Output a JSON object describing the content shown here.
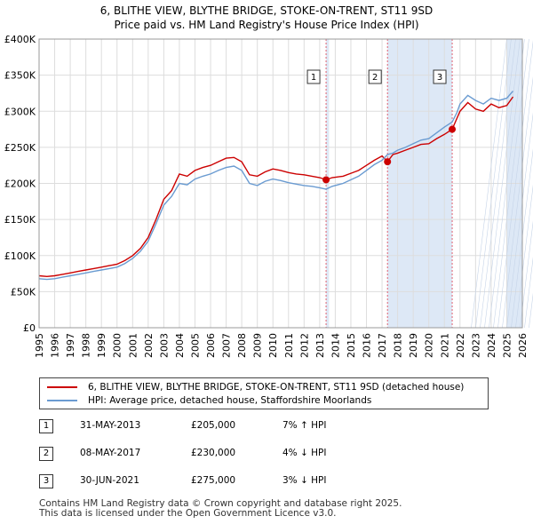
{
  "title_line1": "6, BLITHE VIEW, BLYTHE BRIDGE, STOKE-ON-TRENT, ST11 9SD",
  "title_line2": "Price paid vs. HM Land Registry's House Price Index (HPI)",
  "chart_data": {
    "type": "line",
    "title": "6, BLITHE VIEW, BLYTHE BRIDGE, STOKE-ON-TRENT, ST11 9SD — Price paid vs. HM Land Registry's House Price Index (HPI)",
    "xlabel": "",
    "ylabel": "",
    "xlim": [
      1995,
      2026
    ],
    "ylim": [
      0,
      400000
    ],
    "x_ticks": [
      "1995",
      "1996",
      "1997",
      "1998",
      "1999",
      "2000",
      "2001",
      "2002",
      "2003",
      "2004",
      "2005",
      "2006",
      "2007",
      "2008",
      "2009",
      "2010",
      "2011",
      "2012",
      "2013",
      "2014",
      "2015",
      "2016",
      "2017",
      "2018",
      "2019",
      "2020",
      "2021",
      "2022",
      "2023",
      "2024",
      "2025",
      "2026"
    ],
    "y_ticks": [
      {
        "value": 0,
        "label": "£0"
      },
      {
        "value": 50000,
        "label": "£50K"
      },
      {
        "value": 100000,
        "label": "£100K"
      },
      {
        "value": 150000,
        "label": "£150K"
      },
      {
        "value": 200000,
        "label": "£200K"
      },
      {
        "value": 250000,
        "label": "£250K"
      },
      {
        "value": 300000,
        "label": "£300K"
      },
      {
        "value": 350000,
        "label": "£350K"
      },
      {
        "value": 400000,
        "label": "£400K"
      }
    ],
    "grid": true,
    "shaded_ranges": [
      [
        2013.41,
        2013.6
      ],
      [
        2017.35,
        2021.5
      ],
      [
        2025.0,
        2026.0
      ]
    ],
    "series": [
      {
        "name": "6, BLITHE VIEW, BLYTHE BRIDGE, STOKE-ON-TRENT, ST11 9SD (detached house)",
        "color": "#cc0000",
        "x": [
          1995.0,
          1995.5,
          1996.0,
          1996.5,
          1997.0,
          1997.5,
          1998.0,
          1998.5,
          1999.0,
          1999.5,
          2000.0,
          2000.5,
          2001.0,
          2001.5,
          2002.0,
          2002.5,
          2003.0,
          2003.5,
          2004.0,
          2004.5,
          2005.0,
          2005.5,
          2006.0,
          2006.5,
          2007.0,
          2007.5,
          2008.0,
          2008.5,
          2009.0,
          2009.5,
          2010.0,
          2010.5,
          2011.0,
          2011.5,
          2012.0,
          2012.5,
          2013.0,
          2013.41,
          2013.8,
          2014.5,
          2015.0,
          2015.5,
          2016.0,
          2016.5,
          2017.0,
          2017.35,
          2017.7,
          2018.0,
          2018.5,
          2019.0,
          2019.5,
          2020.0,
          2020.5,
          2021.0,
          2021.5,
          2021.8,
          2022.0,
          2022.5,
          2023.0,
          2023.5,
          2024.0,
          2024.5,
          2025.0,
          2025.4
        ],
        "values": [
          72000,
          71000,
          72000,
          74000,
          76000,
          78000,
          80000,
          82000,
          84000,
          86000,
          88000,
          93000,
          100000,
          110000,
          125000,
          150000,
          178000,
          190000,
          213000,
          210000,
          218000,
          222000,
          225000,
          230000,
          235000,
          236000,
          230000,
          212000,
          210000,
          216000,
          220000,
          218000,
          215000,
          213000,
          212000,
          210000,
          208000,
          205000,
          208000,
          210000,
          214000,
          218000,
          225000,
          232000,
          238000,
          230000,
          240000,
          242000,
          246000,
          250000,
          254000,
          255000,
          262000,
          268000,
          275000,
          290000,
          300000,
          312000,
          303000,
          300000,
          310000,
          305000,
          308000,
          320000
        ]
      },
      {
        "name": "HPI: Average price, detached house, Staffordshire Moorlands",
        "color": "#6a9bd1",
        "x": [
          1995.0,
          1995.5,
          1996.0,
          1996.5,
          1997.0,
          1997.5,
          1998.0,
          1998.5,
          1999.0,
          1999.5,
          2000.0,
          2000.5,
          2001.0,
          2001.5,
          2002.0,
          2002.5,
          2003.0,
          2003.5,
          2004.0,
          2004.5,
          2005.0,
          2005.5,
          2006.0,
          2006.5,
          2007.0,
          2007.5,
          2008.0,
          2008.5,
          2009.0,
          2009.5,
          2010.0,
          2010.5,
          2011.0,
          2011.5,
          2012.0,
          2012.5,
          2013.0,
          2013.41,
          2013.8,
          2014.5,
          2015.0,
          2015.5,
          2016.0,
          2016.5,
          2017.0,
          2017.35,
          2017.7,
          2018.0,
          2018.5,
          2019.0,
          2019.5,
          2020.0,
          2020.5,
          2021.0,
          2021.5,
          2021.8,
          2022.0,
          2022.5,
          2023.0,
          2023.5,
          2024.0,
          2024.5,
          2025.0,
          2025.4
        ],
        "values": [
          68000,
          67000,
          68000,
          70000,
          72000,
          74000,
          76000,
          78000,
          80000,
          82000,
          84000,
          89000,
          96000,
          106000,
          120000,
          144000,
          170000,
          182000,
          200000,
          198000,
          206000,
          210000,
          213000,
          218000,
          222000,
          224000,
          218000,
          200000,
          197000,
          203000,
          206000,
          204000,
          201000,
          199000,
          197000,
          196000,
          194000,
          192000,
          196000,
          200000,
          205000,
          210000,
          218000,
          226000,
          232000,
          240000,
          242000,
          246000,
          250000,
          255000,
          260000,
          262000,
          270000,
          278000,
          285000,
          298000,
          310000,
          322000,
          315000,
          310000,
          318000,
          315000,
          318000,
          328000
        ]
      }
    ],
    "sale_markers": [
      {
        "label": "1",
        "x": 2013.41,
        "value": 205000
      },
      {
        "label": "2",
        "x": 2017.35,
        "value": 230000
      },
      {
        "label": "3",
        "x": 2021.5,
        "value": 275000
      }
    ]
  },
  "legend": {
    "property": "6, BLITHE VIEW, BLYTHE BRIDGE, STOKE-ON-TRENT, ST11 9SD (detached house)",
    "hpi": "HPI: Average price, detached house, Staffordshire Moorlands"
  },
  "sales": [
    {
      "num": "1",
      "date": "31-MAY-2013",
      "price": "£205,000",
      "hpi": "7% ↑ HPI"
    },
    {
      "num": "2",
      "date": "08-MAY-2017",
      "price": "£230,000",
      "hpi": "4% ↓ HPI"
    },
    {
      "num": "3",
      "date": "30-JUN-2021",
      "price": "£275,000",
      "hpi": "3% ↓ HPI"
    }
  ],
  "footer": {
    "line1": "Contains HM Land Registry data © Crown copyright and database right 2025.",
    "line2": "This data is licensed under the Open Government Licence v3.0."
  }
}
